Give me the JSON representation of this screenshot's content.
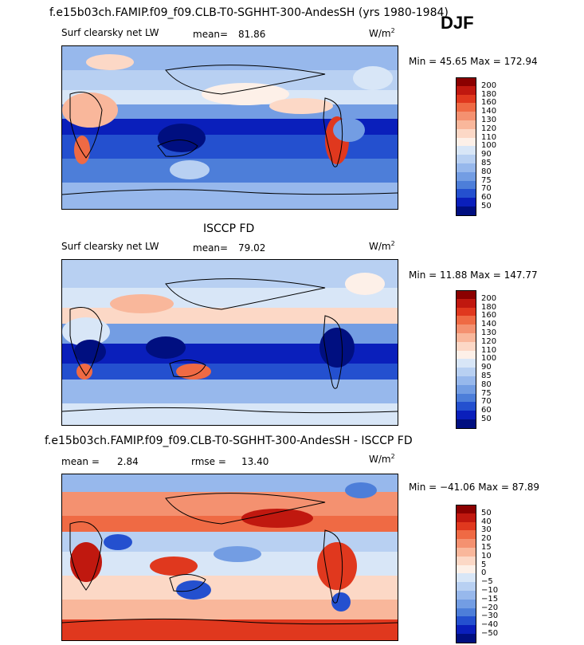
{
  "header": {
    "title": "f.e15b03ch.FAMIP.f09_f09.CLB-T0-SGHHT-300-AndesSH (yrs 1980-1984)",
    "season": "DJF"
  },
  "panel1": {
    "variable": "Surf clearsky net LW",
    "mean_label": "mean=",
    "mean_value": "81.86",
    "units": "W/m",
    "units_sup": "2",
    "minmax": "Min =  45.65 Max = 172.94",
    "colorbar_levels": [
      "200",
      "180",
      "160",
      "140",
      "130",
      "120",
      "110",
      "100",
      "90",
      "85",
      "80",
      "75",
      "70",
      "60",
      "50"
    ],
    "colorbar_colors": [
      "#8b0000",
      "#c0180f",
      "#e0381e",
      "#ef6a44",
      "#f49170",
      "#f9b79b",
      "#fcd8c6",
      "#fdf0e8",
      "#d8e6f7",
      "#b8d0f2",
      "#97b8ec",
      "#739de3",
      "#4d7ed9",
      "#2450cf",
      "#0a1fbb",
      "#000f80"
    ]
  },
  "panel2": {
    "heading": "ISCCP FD",
    "variable": "Surf clearsky net LW",
    "mean_label": "mean=",
    "mean_value": "79.02",
    "units": "W/m",
    "units_sup": "2",
    "minmax": "Min =  11.88 Max = 147.77",
    "colorbar_levels": [
      "200",
      "180",
      "160",
      "140",
      "130",
      "120",
      "110",
      "100",
      "90",
      "85",
      "80",
      "75",
      "70",
      "60",
      "50"
    ],
    "colorbar_colors": [
      "#8b0000",
      "#c0180f",
      "#e0381e",
      "#ef6a44",
      "#f49170",
      "#f9b79b",
      "#fcd8c6",
      "#fdf0e8",
      "#d8e6f7",
      "#b8d0f2",
      "#97b8ec",
      "#739de3",
      "#4d7ed9",
      "#2450cf",
      "#0a1fbb",
      "#000f80"
    ]
  },
  "panel3": {
    "heading": "f.e15b03ch.FAMIP.f09_f09.CLB-T0-SGHHT-300-AndesSH - ISCCP FD",
    "mean_label": "mean =",
    "mean_value": "2.84",
    "rmse_label": "rmse =",
    "rmse_value": "13.40",
    "units": "W/m",
    "units_sup": "2",
    "minmax": "Min = −41.06 Max =  87.89",
    "colorbar_levels": [
      "50",
      "40",
      "30",
      "20",
      "15",
      "10",
      "5",
      "0",
      "−5",
      "−10",
      "−15",
      "−20",
      "−30",
      "−40",
      "−50"
    ],
    "colorbar_colors": [
      "#8b0000",
      "#c0180f",
      "#e0381e",
      "#ef6a44",
      "#f49170",
      "#f9b79b",
      "#fcd8c6",
      "#fdf0e8",
      "#d8e6f7",
      "#b8d0f2",
      "#97b8ec",
      "#739de3",
      "#4d7ed9",
      "#2450cf",
      "#0a1fbb",
      "#000f80"
    ]
  }
}
